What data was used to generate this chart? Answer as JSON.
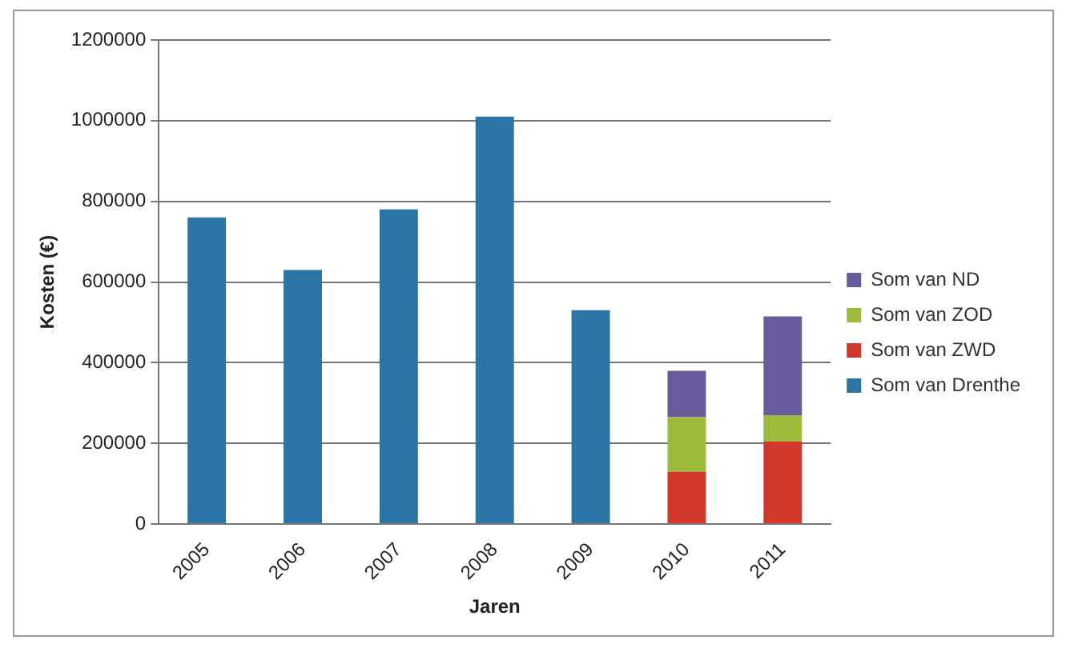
{
  "chart_data": {
    "type": "bar",
    "xlabel": "Jaren",
    "ylabel": "Kosten (€)",
    "categories": [
      "2005",
      "2006",
      "2007",
      "2008",
      "2009",
      "2010",
      "2011"
    ],
    "stacked": true,
    "series": [
      {
        "name": "Som van Drenthe",
        "color": "#2b74a6",
        "values": [
          760000,
          630000,
          780000,
          1010000,
          530000,
          null,
          null
        ]
      },
      {
        "name": "Som van ZWD",
        "color": "#d2382a",
        "values": [
          null,
          null,
          null,
          null,
          null,
          130000,
          205000
        ]
      },
      {
        "name": "Som van ZOD",
        "color": "#9cbb3b",
        "values": [
          null,
          null,
          null,
          null,
          null,
          135000,
          65000
        ]
      },
      {
        "name": "Som van ND",
        "color": "#6a5b9c",
        "values": [
          null,
          null,
          null,
          null,
          null,
          115000,
          245000
        ]
      }
    ],
    "ylim": [
      0,
      1200000
    ],
    "yticks": [
      0,
      200000,
      400000,
      600000,
      800000,
      1000000,
      1200000
    ],
    "grid": "y",
    "legend": "right"
  }
}
